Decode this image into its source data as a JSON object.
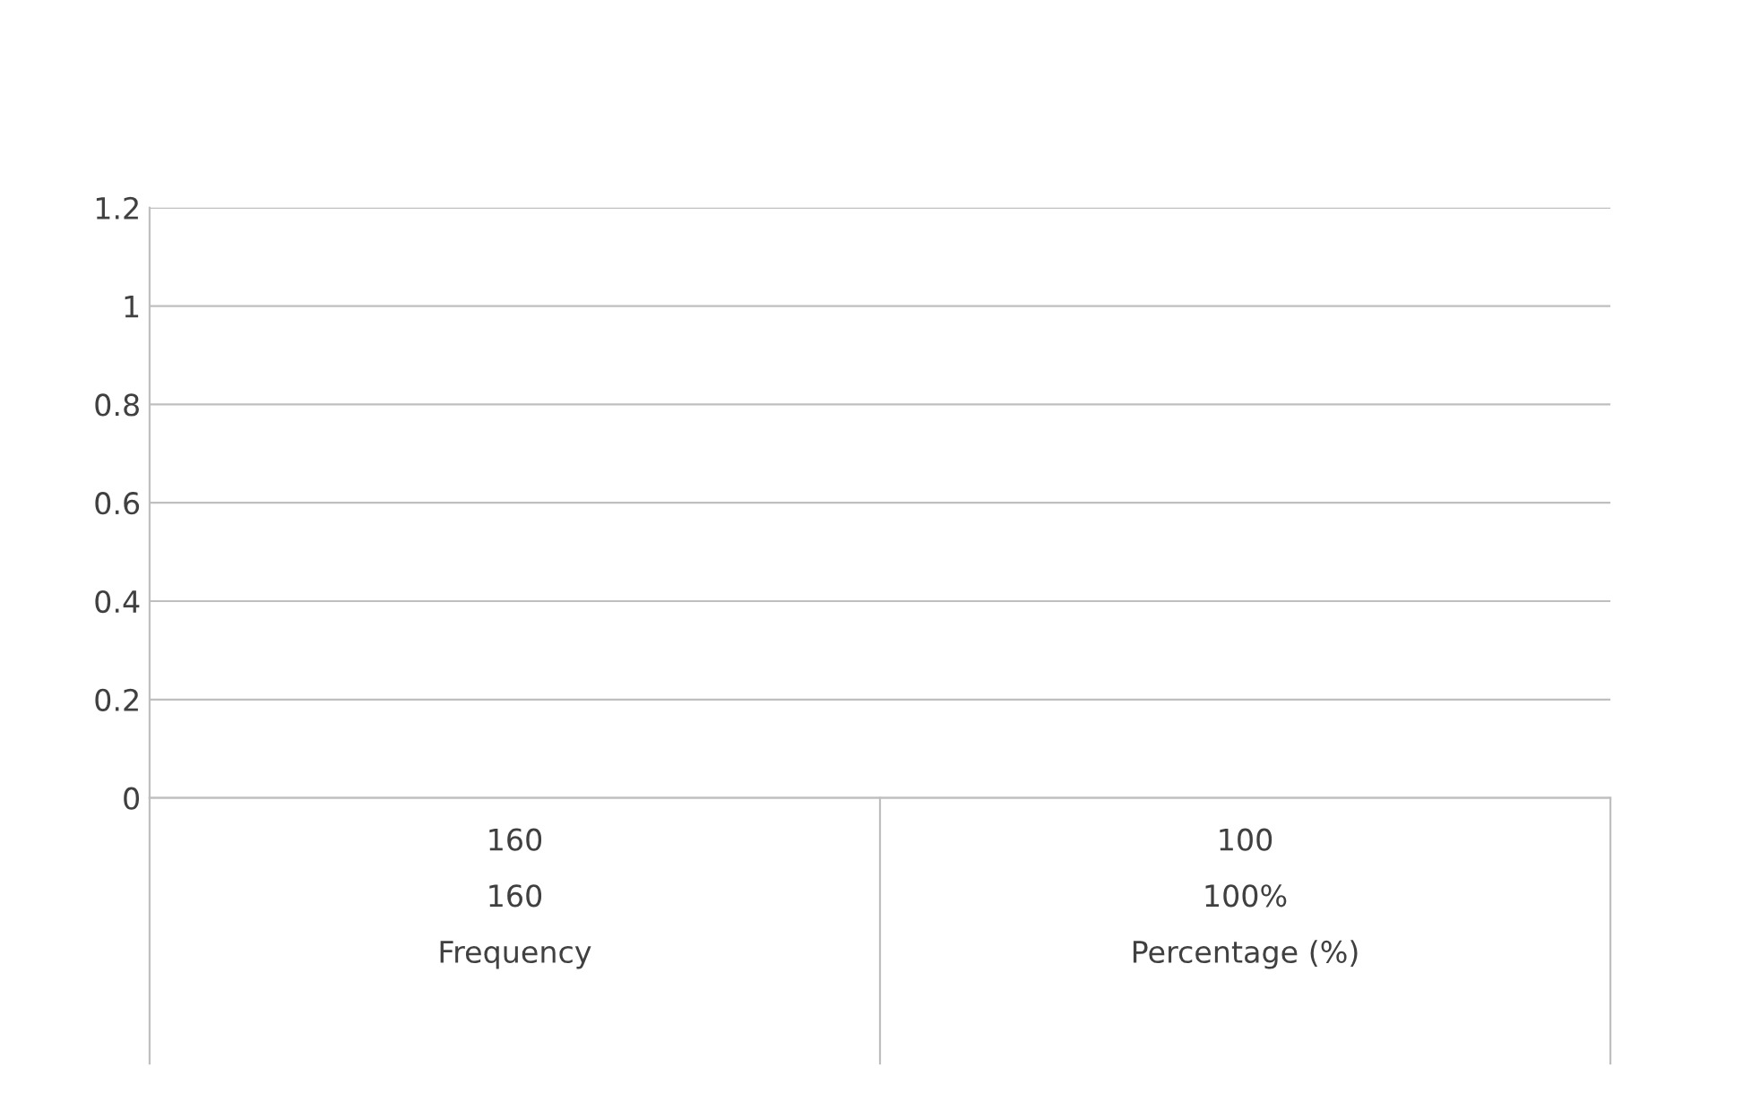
{
  "chart_data": {
    "type": "bar",
    "categories": [
      "160\n160\nFrequency",
      "100\n100%\nPercentage (%)"
    ],
    "values": [
      null,
      null
    ],
    "ylim": [
      0,
      1.2
    ],
    "yticks": [
      0,
      0.2,
      0.4,
      0.6,
      0.8,
      1,
      1.2
    ],
    "grid": "y"
  }
}
